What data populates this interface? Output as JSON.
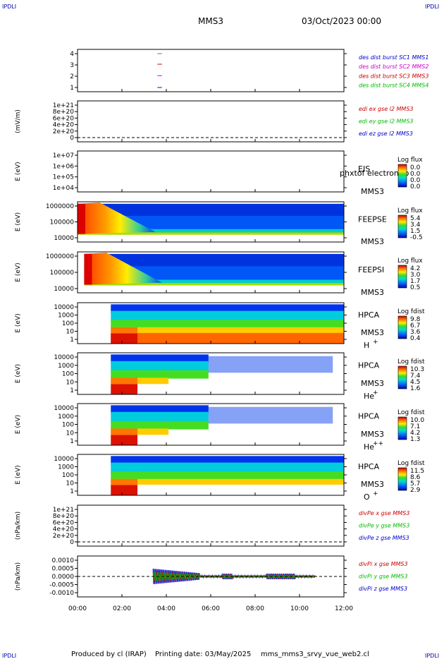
{
  "corner_label": "IPDLI",
  "header": {
    "spacecraft": "MMS3",
    "datetime": "03/Oct/2023 00:00"
  },
  "footer": {
    "producer": "Produced by cl (IRAP)",
    "printing": "Printing date: 03/May/2025",
    "file": "mms_mms3_srvy_vue_web2.cl"
  },
  "x_axis": {
    "ticks": [
      "00:00",
      "02:00",
      "04:00",
      "06:00",
      "08:00",
      "10:00",
      "12:00"
    ],
    "range_hours": [
      0,
      12
    ]
  },
  "chart_data": [
    {
      "id": "burst",
      "type": "scatter",
      "ylabel": "",
      "yticks": [
        "4",
        "3",
        "2",
        "1"
      ],
      "series": [
        {
          "name": "des dist burst SC1 MMS1",
          "color": "#0000cc"
        },
        {
          "name": "des dist burst SC2 MMS2",
          "color": "#cc00cc"
        },
        {
          "name": "des dist burst SC3 MMS3",
          "color": "#cc0000"
        },
        {
          "name": "des dist burst SC4 MMS4",
          "color": "#00bb00"
        }
      ]
    },
    {
      "id": "edi",
      "type": "line",
      "ylabel": "(mV/m)",
      "yticks": [
        "1e+21",
        "8e+20",
        "6e+20",
        "4e+20",
        "2e+20",
        "0"
      ],
      "series": [
        {
          "name": "edi ex gse l2 MMS3",
          "color": "#cc0000"
        },
        {
          "name": "edi ey gse l2 MMS3",
          "color": "#00bb00"
        },
        {
          "name": "edi ez gse l2 MMS3",
          "color": "#0000cc"
        }
      ]
    },
    {
      "id": "eis",
      "type": "heatmap",
      "ylabel": "E (eV)",
      "yticks": [
        "1e+07",
        "1e+06",
        "1e+05",
        "1e+04"
      ],
      "instrument": "EIS",
      "spacecraft": "MMS3",
      "note": "phxtof electron to",
      "colorbar": {
        "title": "Log flux",
        "ticks": [
          "0.0",
          "0.0",
          "0.0",
          "0.0"
        ]
      }
    },
    {
      "id": "feeps_e",
      "type": "heatmap",
      "ylabel": "E (eV)",
      "yticks": [
        "1000000",
        "100000",
        "10000"
      ],
      "instrument": "FEEPSE",
      "spacecraft": "MMS3",
      "colorbar": {
        "title": "Log flux",
        "ticks": [
          "5.4",
          "3.4",
          "1.5",
          "-0.5"
        ]
      }
    },
    {
      "id": "feeps_i",
      "type": "heatmap",
      "ylabel": "E (eV)",
      "yticks": [
        "1000000",
        "100000",
        "10000"
      ],
      "instrument": "FEEPSI",
      "spacecraft": "MMS3",
      "colorbar": {
        "title": "Log flux",
        "ticks": [
          "4.2",
          "3.0",
          "1.7",
          "0.5"
        ]
      }
    },
    {
      "id": "hpca_h",
      "type": "heatmap",
      "ylabel": "E (eV)",
      "yticks": [
        "10000",
        "1000",
        "100",
        "10",
        "1"
      ],
      "instrument": "HPCA",
      "spacecraft": "MMS3",
      "species": "H",
      "charge": "+",
      "colorbar": {
        "title": "Log fdist",
        "ticks": [
          "9.8",
          "6.7",
          "3.6",
          "0.4"
        ]
      }
    },
    {
      "id": "hpca_he",
      "type": "heatmap",
      "ylabel": "E (eV)",
      "yticks": [
        "10000",
        "1000",
        "100",
        "10",
        "1"
      ],
      "instrument": "HPCA",
      "spacecraft": "MMS3",
      "species": "He",
      "charge": "+",
      "colorbar": {
        "title": "Log fdist",
        "ticks": [
          "10.3",
          "7.4",
          "4.5",
          "1.6"
        ]
      }
    },
    {
      "id": "hpca_hepp",
      "type": "heatmap",
      "ylabel": "E (eV)",
      "yticks": [
        "10000",
        "1000",
        "100",
        "10",
        "1"
      ],
      "instrument": "HPCA",
      "spacecraft": "MMS3",
      "species": "He",
      "charge": "++",
      "colorbar": {
        "title": "Log fdist",
        "ticks": [
          "10.0",
          "7.1",
          "4.2",
          "1.3"
        ]
      }
    },
    {
      "id": "hpca_o",
      "type": "heatmap",
      "ylabel": "E (eV)",
      "yticks": [
        "10000",
        "1000",
        "100",
        "10",
        "1"
      ],
      "instrument": "HPCA",
      "spacecraft": "MMS3",
      "species": "O",
      "charge": "+",
      "colorbar": {
        "title": "Log fdist",
        "ticks": [
          "11.5",
          "8.6",
          "5.7",
          "2.9"
        ]
      }
    },
    {
      "id": "divpe",
      "type": "line",
      "ylabel": "(nPa/km)",
      "yticks": [
        "1e+21",
        "8e+20",
        "6e+20",
        "4e+20",
        "2e+20",
        "0"
      ],
      "series": [
        {
          "name": "divPe x gse MMS3",
          "color": "#cc0000"
        },
        {
          "name": "divPe y gse MMS3",
          "color": "#00bb00"
        },
        {
          "name": "divPe z gse MMS3",
          "color": "#0000cc"
        }
      ]
    },
    {
      "id": "divpi",
      "type": "line",
      "ylabel": "(nPa/km)",
      "yticks": [
        "0.0010",
        "0.0005",
        "0.0000",
        "-0.0005",
        "-0.0010"
      ],
      "series": [
        {
          "name": "divPi x gse MMS3",
          "color": "#cc0000"
        },
        {
          "name": "divPi y gse MMS3",
          "color": "#00bb00"
        },
        {
          "name": "divPi z gse MMS3",
          "color": "#0000cc"
        }
      ]
    }
  ]
}
